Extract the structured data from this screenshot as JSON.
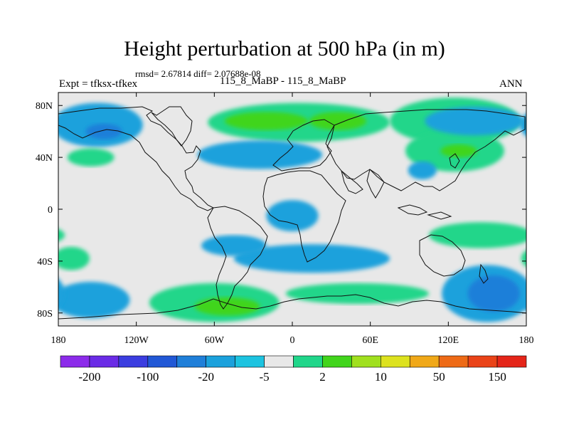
{
  "header": {
    "title": "Height perturbation at 500 hPa (in m)",
    "stats": "rmsd= 2.67814 diff= 2.07688e-08",
    "expt": "Expt = tfksx-tfkex",
    "case": "115_8_MaBP - 115_8_MaBP",
    "season": "ANN"
  },
  "chart_data": {
    "type": "heatmap",
    "title": "Height perturbation at 500 hPa (in m)",
    "xlabel": "",
    "ylabel": "",
    "xlim": [
      -180,
      180
    ],
    "ylim": [
      -90,
      90
    ],
    "x_ticks": [
      {
        "value": -180,
        "label": "180"
      },
      {
        "value": -120,
        "label": "120W"
      },
      {
        "value": -60,
        "label": "60W"
      },
      {
        "value": 0,
        "label": "0"
      },
      {
        "value": 60,
        "label": "60E"
      },
      {
        "value": 120,
        "label": "120E"
      },
      {
        "value": 180,
        "label": "180"
      }
    ],
    "y_ticks": [
      {
        "value": 80,
        "label": "80N"
      },
      {
        "value": 40,
        "label": "40N"
      },
      {
        "value": 0,
        "label": "0"
      },
      {
        "value": -40,
        "label": "40S"
      },
      {
        "value": -80,
        "label": "80S"
      }
    ],
    "background_color": "#e8e8e8",
    "colorbar": {
      "colors": [
        "#8c2bea",
        "#6a2be6",
        "#3b3de0",
        "#2158d6",
        "#1f7fd9",
        "#1ba1dc",
        "#1cc3e0",
        "#e8e8e8",
        "#20d68a",
        "#41d51c",
        "#a0e01e",
        "#dde21e",
        "#f0a818",
        "#ee6a16",
        "#ea4318",
        "#e52519"
      ],
      "labels": [
        {
          "after_box": 1,
          "text": "-200"
        },
        {
          "after_box": 3,
          "text": "-100"
        },
        {
          "after_box": 5,
          "text": "-20"
        },
        {
          "after_box": 7,
          "text": "-5"
        },
        {
          "after_box": 9,
          "text": "2"
        },
        {
          "after_box": 11,
          "text": "10"
        },
        {
          "after_box": 13,
          "text": "50"
        },
        {
          "after_box": 15,
          "text": "150"
        }
      ]
    },
    "anomalies": [
      {
        "lon": -150,
        "lat": 65,
        "rlon": 35,
        "rlat": 17,
        "level": -10,
        "color": "#1ba1dc"
      },
      {
        "lon": -145,
        "lat": 60,
        "rlon": 14,
        "rlat": 6,
        "level": -20,
        "color": "#1f7fd9"
      },
      {
        "lon": -155,
        "lat": 40,
        "rlon": 18,
        "rlat": 7,
        "level": 5,
        "color": "#20d68a"
      },
      {
        "lon": 5,
        "lat": 67,
        "rlon": 70,
        "rlat": 15,
        "level": 5,
        "color": "#20d68a"
      },
      {
        "lon": 125,
        "lat": 68,
        "rlon": 50,
        "rlat": 18,
        "level": 5,
        "color": "#20d68a"
      },
      {
        "lon": 125,
        "lat": 45,
        "rlon": 38,
        "rlat": 16,
        "level": 5,
        "color": "#20d68a"
      },
      {
        "lon": -20,
        "lat": 68,
        "rlon": 32,
        "rlat": 7,
        "level": 10,
        "color": "#41d51c"
      },
      {
        "lon": 35,
        "lat": 68,
        "rlon": 22,
        "rlat": 7,
        "level": 10,
        "color": "#41d51c"
      },
      {
        "lon": 128,
        "lat": 45,
        "rlon": 14,
        "rlat": 5,
        "level": 10,
        "color": "#41d51c"
      },
      {
        "lon": -25,
        "lat": 42,
        "rlon": 48,
        "rlat": 11,
        "level": -10,
        "color": "#1ba1dc"
      },
      {
        "lon": 140,
        "lat": 68,
        "rlon": 38,
        "rlat": 11,
        "level": -10,
        "color": "#1ba1dc"
      },
      {
        "lon": 100,
        "lat": 30,
        "rlon": 11,
        "rlat": 7,
        "level": -10,
        "color": "#1ba1dc"
      },
      {
        "lon": 0,
        "lat": -5,
        "rlon": 20,
        "rlat": 12,
        "level": -10,
        "color": "#1ba1dc"
      },
      {
        "lon": 15,
        "lat": -38,
        "rlon": 60,
        "rlat": 11,
        "level": -10,
        "color": "#1ba1dc"
      },
      {
        "lon": -45,
        "lat": -28,
        "rlon": 25,
        "rlat": 8,
        "level": -10,
        "color": "#1ba1dc"
      },
      {
        "lon": -170,
        "lat": -38,
        "rlon": 14,
        "rlat": 9,
        "level": 5,
        "color": "#20d68a"
      },
      {
        "lon": -60,
        "lat": -72,
        "rlon": 50,
        "rlat": 15,
        "level": 5,
        "color": "#20d68a"
      },
      {
        "lon": 50,
        "lat": -65,
        "rlon": 55,
        "rlat": 8,
        "level": 5,
        "color": "#20d68a"
      },
      {
        "lon": 145,
        "lat": -20,
        "rlon": 40,
        "rlat": 10,
        "level": 5,
        "color": "#20d68a"
      },
      {
        "lon": -50,
        "lat": -75,
        "rlon": 25,
        "rlat": 7,
        "level": 10,
        "color": "#41d51c"
      },
      {
        "lon": -155,
        "lat": -70,
        "rlon": 30,
        "rlat": 14,
        "level": -10,
        "color": "#1ba1dc"
      },
      {
        "lon": 150,
        "lat": -65,
        "rlon": 35,
        "rlat": 22,
        "level": -10,
        "color": "#1ba1dc"
      },
      {
        "lon": 155,
        "lat": -65,
        "rlon": 20,
        "rlat": 14,
        "level": -20,
        "color": "#1f7fd9"
      }
    ]
  }
}
